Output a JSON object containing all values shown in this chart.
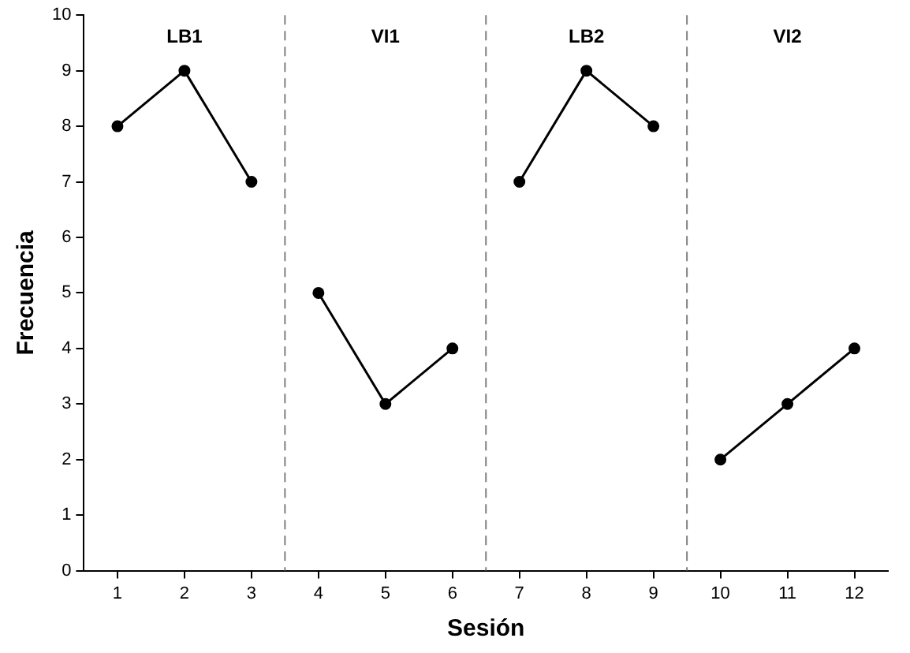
{
  "chart_data": {
    "type": "line",
    "xlabel": "Sesión",
    "ylabel": "Frecuencia",
    "xlim": [
      0.5,
      12.5
    ],
    "xticks": [
      1,
      2,
      3,
      4,
      5,
      6,
      7,
      8,
      9,
      10,
      11,
      12
    ],
    "ylim": [
      0,
      10
    ],
    "yticks": [
      0,
      1,
      2,
      3,
      4,
      5,
      6,
      7,
      8,
      9,
      10
    ],
    "grid": false,
    "legend": false,
    "marker": "circle",
    "line_style": "solid",
    "series": [
      {
        "color": "#000000",
        "x": [
          1,
          2,
          3
        ],
        "values": [
          8,
          9,
          7
        ]
      },
      {
        "color": "#000000",
        "x": [
          4,
          5,
          6
        ],
        "values": [
          5,
          3,
          4
        ]
      },
      {
        "color": "#000000",
        "x": [
          7,
          8,
          9
        ],
        "values": [
          7,
          9,
          8
        ]
      },
      {
        "color": "#000000",
        "x": [
          10,
          11,
          12
        ],
        "values": [
          2,
          3,
          4
        ]
      }
    ],
    "ref_lines": [
      {
        "axis": "x",
        "value": 3.5,
        "color": "#808080",
        "line_style": "dashed"
      },
      {
        "axis": "x",
        "value": 6.5,
        "color": "#808080",
        "line_style": "dashed"
      },
      {
        "axis": "x",
        "value": 9.5,
        "color": "#808080",
        "line_style": "dashed"
      }
    ],
    "annotations": [
      "LB1",
      "VI1",
      "LB2",
      "VI2"
    ]
  }
}
